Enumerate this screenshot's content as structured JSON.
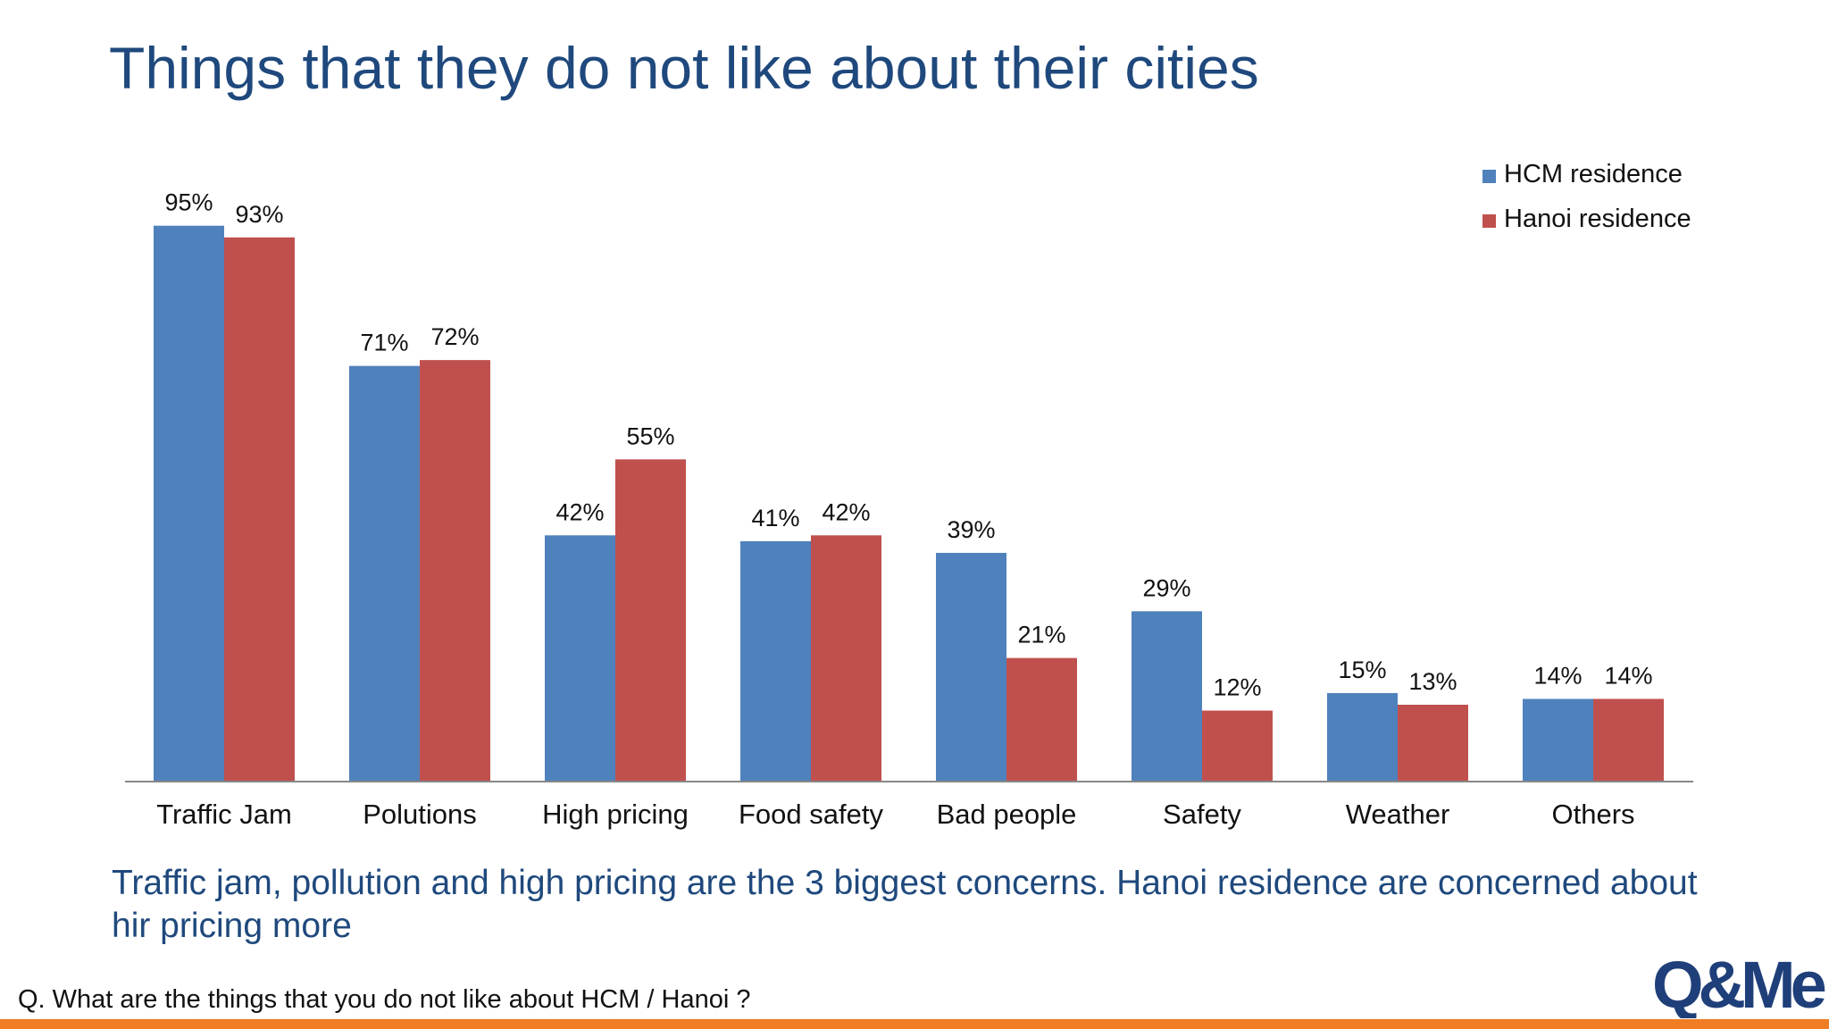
{
  "slide": {
    "title": "Things that they do not like about their cities",
    "conclusion": "Traffic jam, pollution and high pricing are the 3 biggest concerns. Hanoi residence are concerned about hir pricing more",
    "question": "Q. What are the things that you do not like about HCM / Hanoi ?",
    "logo_text": "Q&Me",
    "accent_color": "#f07c23"
  },
  "chart_data": {
    "type": "bar",
    "title": "",
    "xlabel": "",
    "ylabel": "",
    "ylim": [
      0,
      100
    ],
    "grid": false,
    "legend_position": "top-right",
    "categories": [
      "Traffic Jam",
      "Polutions",
      "High pricing",
      "Food safety",
      "Bad people",
      "Safety",
      "Weather",
      "Others"
    ],
    "series": [
      {
        "name": "HCM residence",
        "color": "#4f81bd",
        "values": [
          95,
          71,
          42,
          41,
          39,
          29,
          15,
          14
        ],
        "labels": [
          "95%",
          "71%",
          "42%",
          "41%",
          "39%",
          "29%",
          "15%",
          "14%"
        ]
      },
      {
        "name": "Hanoi residence",
        "color": "#c0504d",
        "values": [
          93,
          72,
          55,
          42,
          21,
          12,
          13,
          14
        ],
        "labels": [
          "93%",
          "72%",
          "55%",
          "42%",
          "21%",
          "12%",
          "13%",
          "14%"
        ]
      }
    ]
  }
}
